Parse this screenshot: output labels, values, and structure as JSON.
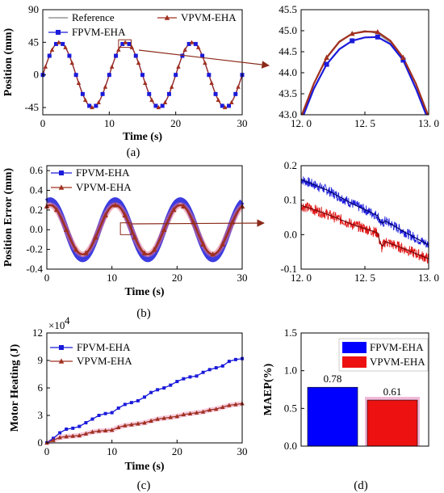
{
  "captions": [
    "(a)",
    "(b)",
    "(c)",
    "(d)"
  ],
  "colors": {
    "reference": "#808080",
    "fpvm": "#1a1adb",
    "vpvm": "#a03020",
    "bar_fpvm": "#0000ff",
    "bar_vpvm": "#ee1111",
    "callout": "#8b2a1a"
  },
  "chart_data": [
    {
      "id": "a_main",
      "type": "line",
      "xlabel": "Time (s)",
      "ylabel": "Position (mm)",
      "xlim": [
        0,
        30
      ],
      "ylim": [
        -55,
        90
      ],
      "xticks": [
        "0",
        "10",
        "20",
        "30"
      ],
      "yticks": [
        "-45",
        "0",
        "45",
        "90"
      ],
      "series": [
        {
          "name": "Reference",
          "amplitude": 45,
          "period": 10,
          "peak_time": 2.5,
          "marker": "none"
        },
        {
          "name": "FPVM-EHA",
          "amplitude": 44.87,
          "period": 10,
          "peak_time": 2.5,
          "marker": "square"
        },
        {
          "name": "VPVM-EHA",
          "amplitude": 44.97,
          "period": 10,
          "peak_time": 2.5,
          "marker": "triangle"
        }
      ]
    },
    {
      "id": "a_zoom",
      "type": "line",
      "xlim": [
        12.0,
        13.0
      ],
      "ylim": [
        43.0,
        45.5
      ],
      "xticks": [
        "12. 0",
        "12. 5",
        "13. 0"
      ],
      "yticks": [
        "43.0",
        "43.5",
        "44.0",
        "44.5",
        "45.0",
        "45.5"
      ],
      "series": [
        {
          "name": "Reference",
          "x": [
            12.0,
            12.1,
            12.2,
            12.3,
            12.4,
            12.5,
            12.6,
            12.7,
            12.8,
            12.9,
            13.0
          ],
          "y": [
            42.9,
            43.73,
            44.34,
            44.72,
            44.93,
            45.0,
            44.93,
            44.72,
            44.34,
            43.73,
            42.9
          ]
        },
        {
          "name": "FPVM-EHA",
          "x": [
            12.0,
            12.1,
            12.2,
            12.3,
            12.4,
            12.5,
            12.6,
            12.7,
            12.8,
            12.9,
            13.0
          ],
          "y": [
            42.85,
            43.62,
            44.2,
            44.56,
            44.76,
            44.84,
            44.85,
            44.68,
            44.3,
            43.62,
            42.85
          ]
        },
        {
          "name": "VPVM-EHA",
          "x": [
            12.0,
            12.1,
            12.2,
            12.3,
            12.4,
            12.5,
            12.6,
            12.7,
            12.8,
            12.9,
            13.0
          ],
          "y": [
            42.95,
            43.74,
            44.36,
            44.74,
            44.93,
            44.98,
            44.97,
            44.76,
            44.36,
            43.74,
            42.95
          ]
        }
      ]
    },
    {
      "id": "b_main",
      "type": "line",
      "xlabel": "Time (s)",
      "ylabel": "Position Error (mm)",
      "xlim": [
        0,
        30
      ],
      "ylim": [
        -0.4,
        0.65
      ],
      "xticks": [
        "0",
        "10",
        "20",
        "30"
      ],
      "yticks": [
        "-0.4",
        "-0.2",
        "0.0",
        "0.2",
        "0.4",
        "0.6"
      ],
      "series": [
        {
          "name": "FPVM-EHA",
          "amplitude": 0.3,
          "period": 10,
          "peak_time": 0.5,
          "marker": "square"
        },
        {
          "name": "VPVM-EHA",
          "amplitude": 0.25,
          "period": 10,
          "peak_time": 0.5,
          "marker": "triangle"
        }
      ]
    },
    {
      "id": "b_zoom",
      "type": "line",
      "xlim": [
        12.0,
        13.0
      ],
      "ylim": [
        -0.1,
        0.2
      ],
      "xticks": [
        "12. 0",
        "12. 5",
        "13. 0"
      ],
      "yticks": [
        "-0.1",
        "0.0",
        "0.1",
        "0.2"
      ],
      "series": [
        {
          "name": "FPVM-EHA",
          "x": [
            12.0,
            12.2,
            12.4,
            12.6,
            12.63,
            12.66,
            12.8,
            13.0
          ],
          "y": [
            0.16,
            0.13,
            0.09,
            0.055,
            0.03,
            0.04,
            0.01,
            -0.03
          ]
        },
        {
          "name": "VPVM-EHA",
          "x": [
            12.0,
            12.2,
            12.4,
            12.6,
            12.63,
            12.66,
            12.8,
            13.0
          ],
          "y": [
            0.085,
            0.06,
            0.03,
            0.005,
            -0.04,
            -0.02,
            -0.04,
            -0.07
          ]
        }
      ]
    },
    {
      "id": "c",
      "type": "line",
      "xlabel": "Time (s)",
      "ylabel": "Motor Heating (J)",
      "scale_label": "×10",
      "scale_exp": "4",
      "xlim": [
        0,
        30
      ],
      "ylim": [
        0,
        12
      ],
      "xticks": [
        "0",
        "10",
        "20",
        "30"
      ],
      "yticks": [
        "0",
        "3",
        "6",
        "9",
        "12"
      ],
      "series": [
        {
          "name": "FPVM-EHA",
          "x": [
            0,
            1,
            2,
            3,
            4,
            5,
            6,
            7,
            8,
            9,
            10,
            11,
            12,
            13,
            14,
            15,
            16,
            17,
            18,
            19,
            20,
            21,
            22,
            23,
            24,
            25,
            26,
            27,
            28,
            29,
            30
          ],
          "y": [
            0,
            0.5,
            1.1,
            1.5,
            1.6,
            1.8,
            2.2,
            2.6,
            3.0,
            3.2,
            3.3,
            3.8,
            4.2,
            4.4,
            4.6,
            5.0,
            5.5,
            5.8,
            6.0,
            6.3,
            6.7,
            7.0,
            7.2,
            7.3,
            7.7,
            8.0,
            8.2,
            8.4,
            8.9,
            9.1,
            9.2
          ]
        },
        {
          "name": "VPVM-EHA",
          "x": [
            0,
            1,
            2,
            3,
            4,
            5,
            6,
            7,
            8,
            9,
            10,
            11,
            12,
            13,
            14,
            15,
            16,
            17,
            18,
            19,
            20,
            21,
            22,
            23,
            24,
            25,
            26,
            27,
            28,
            29,
            30
          ],
          "y": [
            0,
            0.3,
            0.6,
            0.7,
            0.75,
            0.8,
            1.0,
            1.2,
            1.3,
            1.35,
            1.4,
            1.7,
            1.9,
            2.0,
            2.1,
            2.2,
            2.4,
            2.6,
            2.7,
            2.8,
            2.9,
            3.1,
            3.2,
            3.3,
            3.4,
            3.6,
            3.7,
            3.9,
            4.1,
            4.2,
            4.3
          ]
        }
      ]
    },
    {
      "id": "d",
      "type": "bar",
      "ylabel": "MAEP(%)",
      "ylim": [
        0,
        1.5
      ],
      "yticks": [
        "0.0",
        "0.5",
        "1.0",
        "1.5"
      ],
      "categories": [
        "FPVM-EHA",
        "VPVM-EHA"
      ],
      "values": [
        0.78,
        0.61
      ],
      "value_labels": [
        "0.78",
        "0.61"
      ]
    }
  ]
}
